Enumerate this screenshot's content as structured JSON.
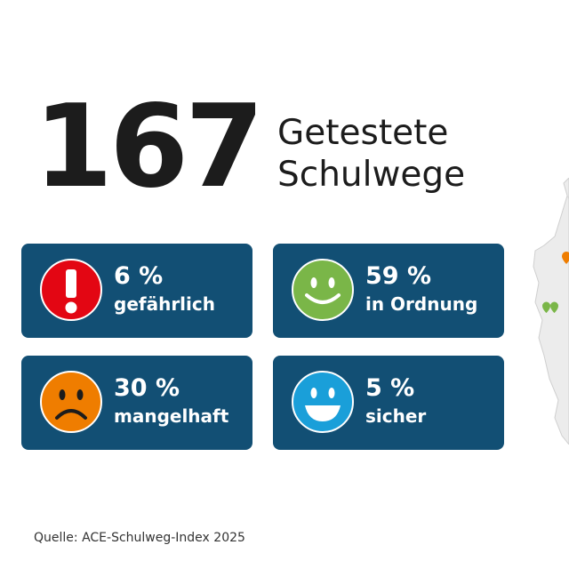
{
  "header": {
    "count": "167",
    "label_line1": "Getestete",
    "label_line2": "Schulwege"
  },
  "cards": [
    {
      "percent": "6 %",
      "label": "gefährlich",
      "icon": "exclamation-icon",
      "color": "#e30613"
    },
    {
      "percent": "59 %",
      "label": "in Ordnung",
      "icon": "smiling-face-icon",
      "color": "#7ab648"
    },
    {
      "percent": "30 %",
      "label": "mangelhaft",
      "icon": "frowning-face-icon",
      "color": "#ef7d00"
    },
    {
      "percent": "5 %",
      "label": "sicher",
      "icon": "grinning-face-icon",
      "color": "#1a9fd9"
    }
  ],
  "card_background": "#124f74",
  "source": "Quelle: ACE-Schulweg-Index 2025"
}
